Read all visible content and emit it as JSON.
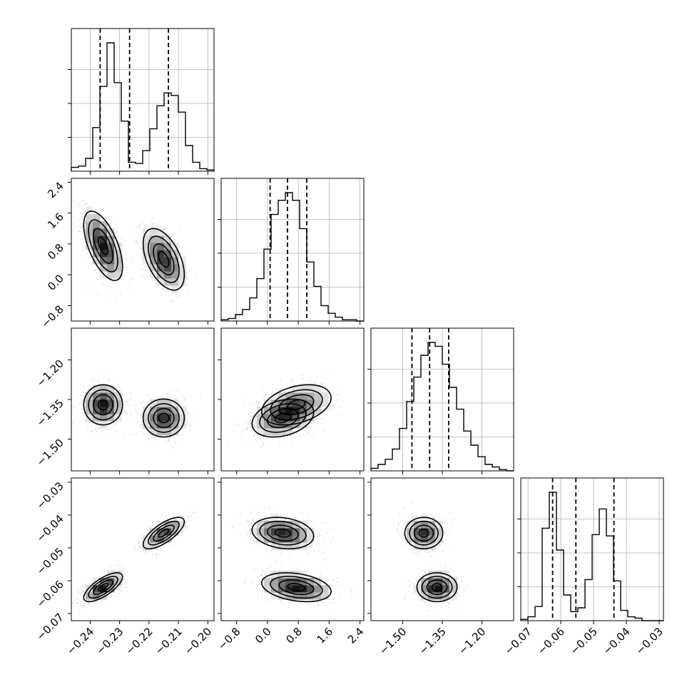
{
  "chart_data": {
    "type": "corner",
    "title": "",
    "grid": true,
    "params": [
      {
        "range": [
          -0.2464,
          -0.1979
        ],
        "ticks": [
          -0.24,
          -0.23,
          -0.22,
          -0.21,
          -0.2
        ],
        "tick_labels": [
          "−0.24",
          "−0.23",
          "−0.22",
          "−0.21",
          "−0.20"
        ],
        "quantiles": [
          -0.2366,
          -0.2266,
          -0.2134
        ]
      },
      {
        "range": [
          -1.2,
          2.5
        ],
        "ticks": [
          -0.8,
          0.0,
          0.8,
          1.6,
          2.4
        ],
        "tick_labels": [
          "−0.8",
          "0.0",
          "0.8",
          "1.6",
          "2.4"
        ],
        "quantiles": [
          0.07,
          0.52,
          1.02
        ]
      },
      {
        "range": [
          -1.62,
          -1.08
        ],
        "ticks": [
          -1.5,
          -1.35,
          -1.2
        ],
        "tick_labels": [
          "−1.50",
          "−1.35",
          "−1.20"
        ],
        "quantiles": [
          -1.465,
          -1.398,
          -1.326
        ]
      },
      {
        "range": [
          -0.0722,
          -0.0287
        ],
        "ticks": [
          -0.07,
          -0.06,
          -0.05,
          -0.04,
          -0.03
        ],
        "tick_labels": [
          "−0.07",
          "−0.06",
          "−0.05",
          "−0.04",
          "−0.03"
        ],
        "quantiles": [
          -0.0625,
          -0.0554,
          -0.0438
        ]
      }
    ],
    "histograms": [
      [
        0.03,
        0.04,
        0.1,
        0.34,
        0.66,
        1.0,
        0.69,
        0.39,
        0.07,
        0.06,
        0.16,
        0.33,
        0.51,
        0.61,
        0.59,
        0.46,
        0.2,
        0.07,
        0.02,
        0.01
      ],
      [
        0.01,
        0.02,
        0.05,
        0.09,
        0.18,
        0.33,
        0.56,
        0.83,
        0.94,
        1.0,
        0.94,
        0.72,
        0.46,
        0.27,
        0.12,
        0.06,
        0.03,
        0.01,
        0.01,
        0.0
      ],
      [
        0.02,
        0.05,
        0.09,
        0.17,
        0.33,
        0.54,
        0.73,
        0.9,
        1.0,
        0.97,
        0.83,
        0.65,
        0.48,
        0.31,
        0.2,
        0.11,
        0.05,
        0.03,
        0.01,
        0.0
      ],
      [
        0.01,
        0.03,
        0.11,
        0.72,
        1.0,
        0.55,
        0.2,
        0.07,
        0.1,
        0.32,
        0.67,
        0.87,
        0.66,
        0.31,
        0.08,
        0.03,
        0.02,
        0.0,
        0.0,
        0.0
      ]
    ],
    "modes": [
      {
        "weight": 0.52,
        "mean": [
          -0.2356,
          0.75,
          -1.37,
          -0.062
        ],
        "sd": [
          0.0033,
          0.45,
          0.038,
          0.0022
        ],
        "corr": [
          [
            1,
            -0.6,
            0.0,
            0.72
          ],
          [
            -0.6,
            1,
            0.35,
            -0.3
          ],
          [
            0.0,
            0.35,
            1,
            0.0
          ],
          [
            0.72,
            -0.3,
            0.0,
            1
          ]
        ]
      },
      {
        "weight": 0.48,
        "mean": [
          -0.215,
          0.4,
          -1.42,
          -0.0455
        ],
        "sd": [
          0.0035,
          0.4,
          0.036,
          0.0024
        ],
        "corr": [
          [
            1,
            -0.5,
            0.0,
            0.72
          ],
          [
            -0.5,
            1,
            0.3,
            -0.2
          ],
          [
            0.0,
            0.3,
            1,
            0.0
          ],
          [
            0.72,
            -0.2,
            0.0,
            1
          ]
        ]
      }
    ]
  }
}
